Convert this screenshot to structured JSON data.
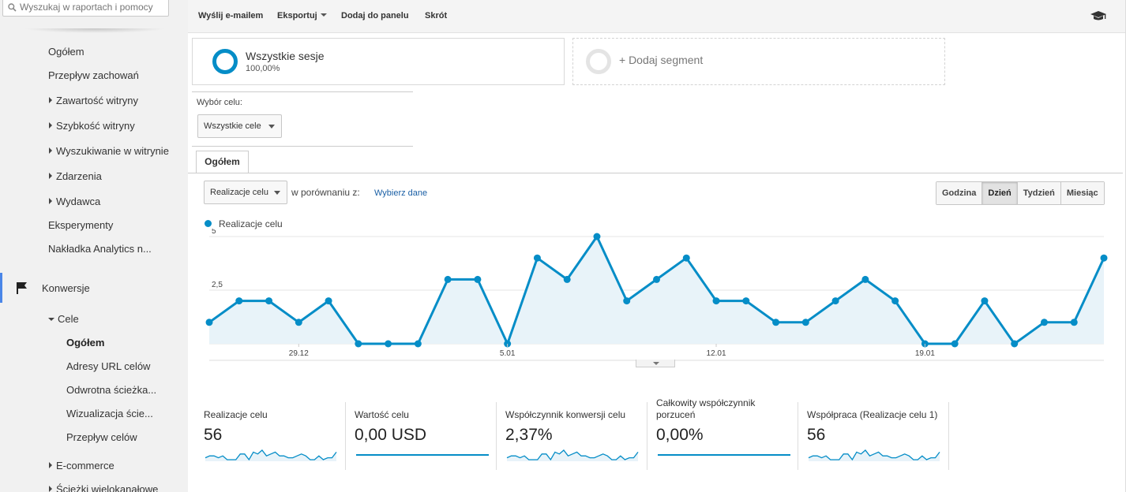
{
  "search": {
    "placeholder": "Wyszukaj w raportach i pomocy"
  },
  "sidebar": {
    "items": [
      {
        "label": "Ogółem"
      },
      {
        "label": "Przepływ zachowań"
      },
      {
        "label": "Zawartość witryny"
      },
      {
        "label": "Szybkość witryny"
      },
      {
        "label": "Wyszukiwanie w witrynie"
      },
      {
        "label": "Zdarzenia"
      },
      {
        "label": "Wydawca"
      },
      {
        "label": "Eksperymenty"
      },
      {
        "label": "Nakładka Analytics n..."
      },
      {
        "label": "Konwersje"
      },
      {
        "label": "Cele"
      },
      {
        "label": "Ogółem"
      },
      {
        "label": "Adresy URL celów"
      },
      {
        "label": "Odwrotna ścieżka..."
      },
      {
        "label": "Wizualizacja ście..."
      },
      {
        "label": "Przepływ celów"
      },
      {
        "label": "E-commerce"
      },
      {
        "label": "Ścieżki wielokanałowe"
      }
    ]
  },
  "toolbar": {
    "email": "Wyślij e-mailem",
    "export": "Eksportuj",
    "add_to_dashboard": "Dodaj do panelu",
    "shortcut": "Skrót"
  },
  "segments": {
    "all_sessions": "Wszystkie sesje",
    "all_sessions_pct": "100,00%",
    "add_segment": "+ Dodaj segment"
  },
  "goal_select": {
    "label": "Wybór celu:",
    "value": "Wszystkie cele"
  },
  "tab": "Ogółem",
  "controls": {
    "metric": "Realizacje celu",
    "compare_text": "w porównaniu z:",
    "compare_link": "Wybierz dane",
    "granularity": [
      "Godzina",
      "Dzień",
      "Tydzień",
      "Miesiąc"
    ],
    "selected_granularity": "Dzień"
  },
  "colors": {
    "series": "#058dc7",
    "fill": "#e8f3f9",
    "link": "#1a5fa5"
  },
  "chart_data": {
    "type": "area",
    "series": [
      {
        "name": "Realizacje celu",
        "values": [
          1,
          2,
          2,
          1,
          2,
          0,
          0,
          0,
          3,
          3,
          0,
          4,
          3,
          5,
          2,
          3,
          4,
          2,
          2,
          1,
          1,
          2,
          3,
          2,
          0,
          0,
          2,
          0,
          1,
          1,
          4
        ]
      }
    ],
    "x_tick_labels": [
      "29.12",
      "5.01",
      "12.01",
      "19.01"
    ],
    "x_tick_index": [
      3,
      10,
      17,
      24
    ],
    "y_tick_labels": [
      "5",
      "2,5"
    ],
    "ylim": [
      0,
      5
    ],
    "grid": true
  },
  "metrics": [
    {
      "label": "Realizacje celu",
      "value": "56"
    },
    {
      "label": "Wartość celu",
      "value": "0,00 USD"
    },
    {
      "label": "Współczynnik konwersji celu",
      "value": "2,37%"
    },
    {
      "label": "Całkowity współczynnik porzuceń",
      "value": "0,00%"
    },
    {
      "label": "Współpraca (Realizacje celu 1)",
      "value": "56"
    }
  ]
}
